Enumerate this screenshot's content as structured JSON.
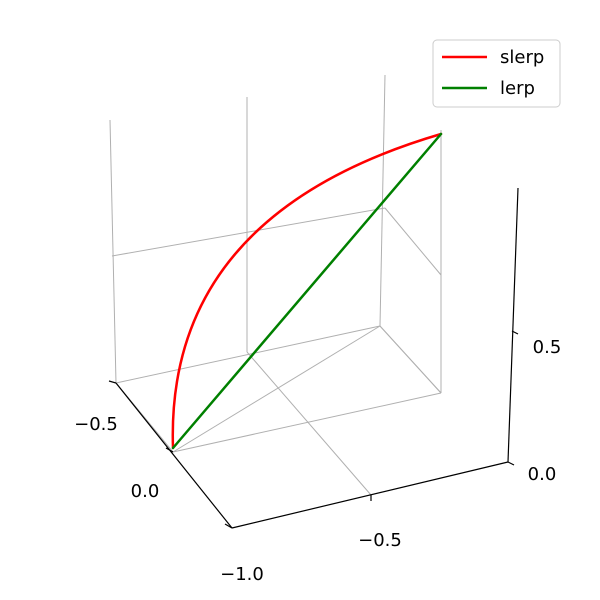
{
  "chart_data": {
    "type": "line",
    "projection": "3d",
    "title": "",
    "grid": true,
    "legend_position": "top-right",
    "axes": {
      "x": {
        "ticks": [
          -1.0,
          -0.5
        ],
        "tick_labels": [
          "−1.0",
          "−0.5"
        ]
      },
      "y": {
        "ticks": [
          -0.5,
          0.0
        ],
        "tick_labels": [
          "−0.5",
          "0.0"
        ]
      },
      "z": {
        "ticks": [
          0.0,
          0.5
        ],
        "tick_labels": [
          "0.0",
          "0.5"
        ]
      }
    },
    "series": [
      {
        "name": "slerp",
        "color": "#ff0000",
        "interpolation": "spherical",
        "start": [
          0,
          0,
          0
        ],
        "end": [
          -1,
          -1,
          1
        ]
      },
      {
        "name": "lerp",
        "color": "#008000",
        "interpolation": "linear",
        "start": [
          0,
          0,
          0
        ],
        "end": [
          -1,
          -1,
          1
        ]
      }
    ]
  }
}
